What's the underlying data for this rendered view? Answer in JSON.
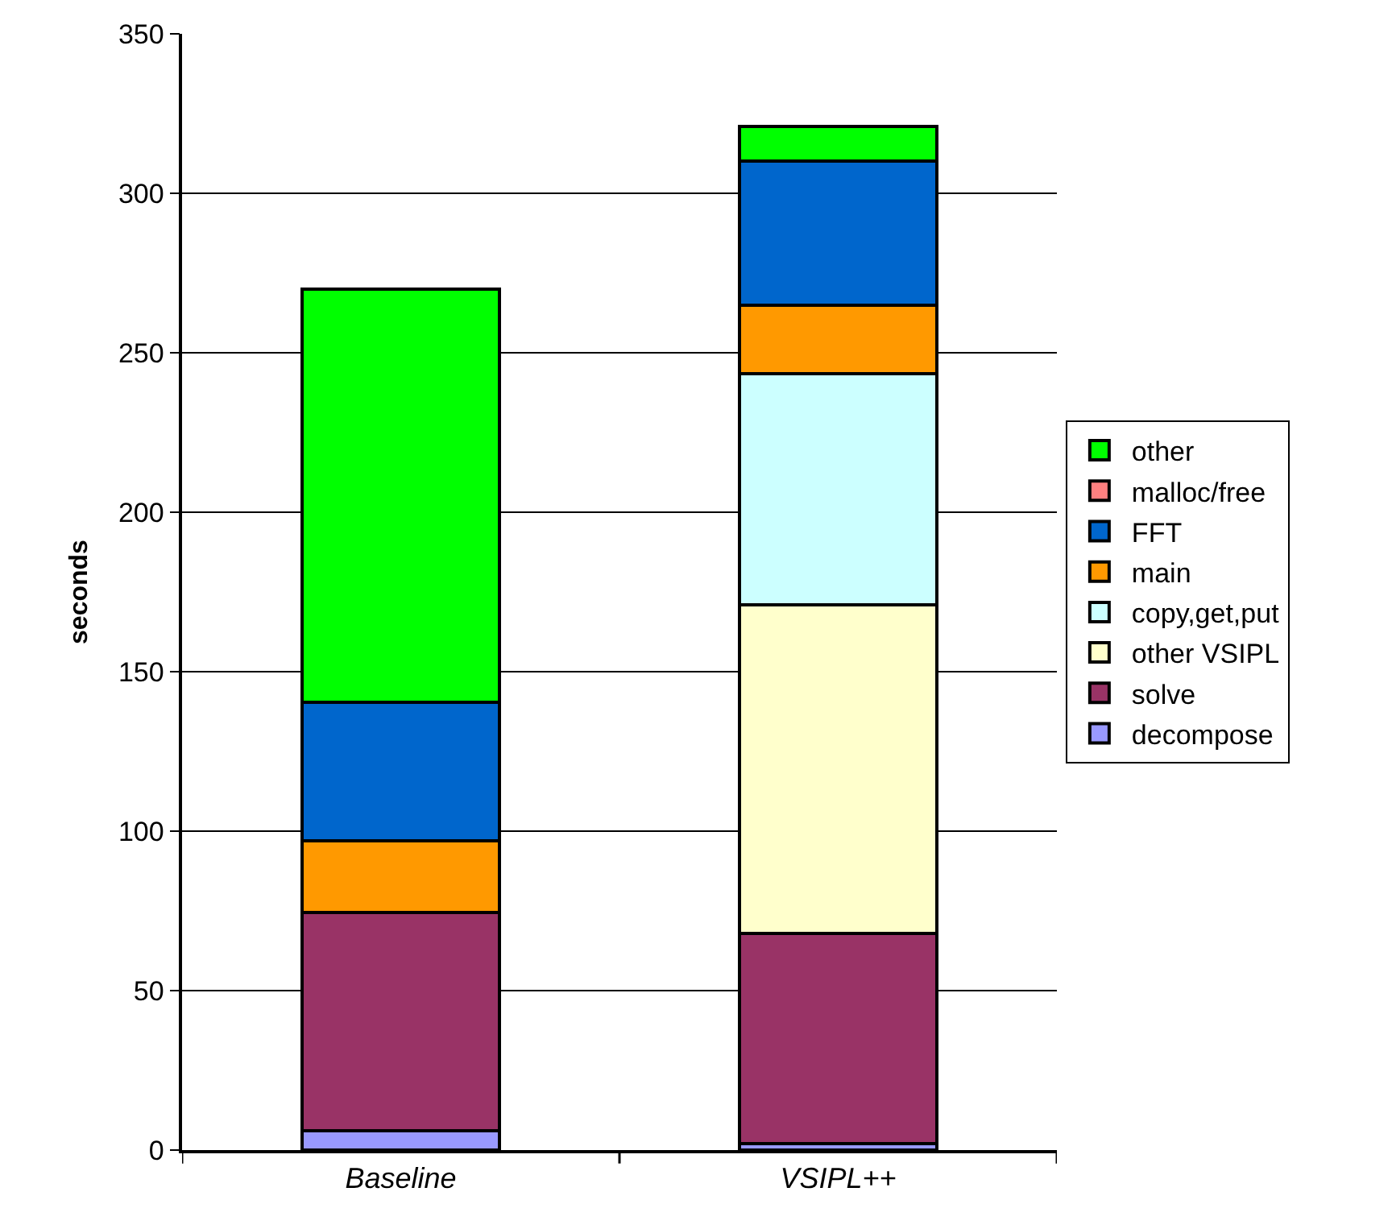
{
  "chart_data": {
    "type": "bar",
    "stacked": true,
    "ylabel": "seconds",
    "categories": [
      "Baseline",
      "VSIPL++"
    ],
    "ylim": [
      0,
      350
    ],
    "yticks": [
      0,
      50,
      100,
      150,
      200,
      250,
      300,
      350
    ],
    "grid": "y",
    "legend": "right",
    "series": [
      {
        "name": "decompose",
        "color": "#9999ff",
        "values": [
          6,
          2
        ]
      },
      {
        "name": "solve",
        "color": "#993366",
        "values": [
          68.5,
          66
        ]
      },
      {
        "name": "other VSIPL",
        "color": "#ffffcc",
        "values": [
          0,
          103
        ]
      },
      {
        "name": "copy,get,put",
        "color": "#ccffff",
        "values": [
          0,
          72.5
        ]
      },
      {
        "name": "main",
        "color": "#ff9900",
        "values": [
          22.5,
          21.5
        ]
      },
      {
        "name": "FFT",
        "color": "#0066cc",
        "values": [
          43.5,
          45
        ]
      },
      {
        "name": "malloc/free",
        "color": "#ff8080",
        "values": [
          0,
          0
        ]
      },
      {
        "name": "other",
        "color": "#00ff00",
        "values": [
          129.5,
          11
        ]
      }
    ]
  }
}
